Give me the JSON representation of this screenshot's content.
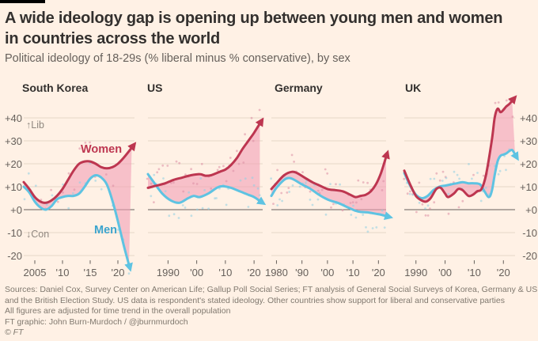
{
  "header": {
    "title_line1": "A wide ideology gap is opening up between young men and women",
    "title_line2": "in countries across the world",
    "subtitle": "Political ideology of 18-29s (% liberal minus % conservative), by sex"
  },
  "colors": {
    "background": "#fff1e5",
    "top_bar": "#000000",
    "title_text": "#33302e",
    "muted_text": "#66605b",
    "footer_text": "#80796f",
    "women_line": "#bd3650",
    "men_line": "#5ec3e2",
    "men_label_text": "#3ba4cd",
    "area_fill": "#f2a0b6",
    "women_dot": "#dd8ea4",
    "men_dot": "#8fcfe4",
    "gridline": "#e5d6c6",
    "zero_line": "#66605b"
  },
  "axis": {
    "tick_values": [
      40,
      30,
      20,
      10,
      0,
      -10,
      -20
    ],
    "tick_labels": [
      "+40",
      "+30",
      "+20",
      "+10",
      "+0",
      "-10",
      "-20"
    ],
    "lib_label": "↑Lib",
    "con_label": "↓Con"
  },
  "annotations": {
    "women_label": "Women",
    "men_label": "Men"
  },
  "chart_data": {
    "type": "line",
    "ylabel": "% liberal minus % conservative",
    "ylim": [
      -25,
      50
    ],
    "grid": true,
    "series_names": [
      "Women",
      "Men"
    ],
    "panels": [
      {
        "title": "South Korea",
        "x_ticks": [
          {
            "year": 2005,
            "label": "2005"
          },
          {
            "year": 2010,
            "label": "'10"
          },
          {
            "year": 2015,
            "label": "'15"
          },
          {
            "year": 2020,
            "label": "'20"
          }
        ],
        "women": [
          [
            2003,
            12
          ],
          [
            2004,
            9
          ],
          [
            2005,
            5.5
          ],
          [
            2006,
            3.5
          ],
          [
            2007,
            3
          ],
          [
            2008,
            4
          ],
          [
            2009,
            6
          ],
          [
            2010,
            9
          ],
          [
            2011,
            13
          ],
          [
            2012,
            17
          ],
          [
            2013,
            20
          ],
          [
            2014,
            21
          ],
          [
            2015,
            21
          ],
          [
            2016,
            20
          ],
          [
            2017,
            18.5
          ],
          [
            2018,
            18
          ],
          [
            2019,
            18.5
          ],
          [
            2020,
            20
          ],
          [
            2021,
            22.5
          ],
          [
            2022.5,
            27
          ]
        ],
        "men": [
          [
            2003,
            10
          ],
          [
            2004,
            7.5
          ],
          [
            2005,
            3.5
          ],
          [
            2006,
            1
          ],
          [
            2007,
            0
          ],
          [
            2008,
            1.5
          ],
          [
            2009,
            4.5
          ],
          [
            2010,
            5.5
          ],
          [
            2011,
            6
          ],
          [
            2012,
            6
          ],
          [
            2013,
            7
          ],
          [
            2014,
            10
          ],
          [
            2015,
            13.5
          ],
          [
            2016,
            15
          ],
          [
            2017,
            14
          ],
          [
            2018,
            11
          ],
          [
            2019,
            4
          ],
          [
            2020,
            -5
          ],
          [
            2021,
            -15
          ],
          [
            2022,
            -24
          ]
        ]
      },
      {
        "title": "US",
        "x_ticks": [
          {
            "year": 1990,
            "label": "1990"
          },
          {
            "year": 2000,
            "label": "'00"
          },
          {
            "year": 2010,
            "label": "'10"
          },
          {
            "year": 2020,
            "label": "'20"
          }
        ],
        "women": [
          [
            1983,
            9.5
          ],
          [
            1986,
            10.5
          ],
          [
            1989,
            11.5
          ],
          [
            1992,
            13
          ],
          [
            1995,
            14
          ],
          [
            1998,
            15
          ],
          [
            2001,
            15.5
          ],
          [
            2003,
            14.8
          ],
          [
            2005,
            15
          ],
          [
            2008,
            16.5
          ],
          [
            2010,
            17.5
          ],
          [
            2012,
            19.5
          ],
          [
            2014,
            22.5
          ],
          [
            2016,
            26.5
          ],
          [
            2018,
            30
          ],
          [
            2020,
            33.5
          ],
          [
            2022,
            37.5
          ]
        ],
        "men": [
          [
            1983,
            15.5
          ],
          [
            1985,
            12
          ],
          [
            1988,
            7
          ],
          [
            1991,
            4
          ],
          [
            1994,
            3
          ],
          [
            1997,
            5
          ],
          [
            1999,
            6
          ],
          [
            2001,
            5.5
          ],
          [
            2004,
            7
          ],
          [
            2007,
            9.5
          ],
          [
            2009,
            10.2
          ],
          [
            2012,
            9.5
          ],
          [
            2015,
            8
          ],
          [
            2018,
            6.5
          ],
          [
            2020,
            5.5
          ],
          [
            2022,
            3.8
          ]
        ]
      },
      {
        "title": "Germany",
        "x_ticks": [
          {
            "year": 1980,
            "label": "1980"
          },
          {
            "year": 1990,
            "label": "'90"
          },
          {
            "year": 2000,
            "label": "'00"
          },
          {
            "year": 2010,
            "label": "'10"
          },
          {
            "year": 2020,
            "label": "'20"
          }
        ],
        "women": [
          [
            1978,
            9
          ],
          [
            1980,
            11.5
          ],
          [
            1983,
            15
          ],
          [
            1986,
            16.5
          ],
          [
            1988,
            16
          ],
          [
            1991,
            14
          ],
          [
            1994,
            12
          ],
          [
            1997,
            10.5
          ],
          [
            2000,
            9
          ],
          [
            2003,
            8.5
          ],
          [
            2006,
            8
          ],
          [
            2009,
            6.5
          ],
          [
            2011,
            5.5
          ],
          [
            2013,
            6
          ],
          [
            2015,
            6.5
          ],
          [
            2017,
            8
          ],
          [
            2019,
            11
          ],
          [
            2021,
            16
          ],
          [
            2023,
            23
          ]
        ],
        "men": [
          [
            1978,
            6
          ],
          [
            1980,
            9.5
          ],
          [
            1983,
            13
          ],
          [
            1985,
            13.8
          ],
          [
            1987,
            13
          ],
          [
            1990,
            11
          ],
          [
            1993,
            9.3
          ],
          [
            1996,
            7
          ],
          [
            1999,
            5
          ],
          [
            2001,
            4
          ],
          [
            2004,
            3
          ],
          [
            2007,
            1.5
          ],
          [
            2009,
            0.5
          ],
          [
            2011,
            -0.5
          ],
          [
            2013,
            -1
          ],
          [
            2016,
            -1.2
          ],
          [
            2019,
            -1.8
          ],
          [
            2021,
            -2.2
          ],
          [
            2023,
            -2.8
          ]
        ]
      },
      {
        "title": "UK",
        "x_ticks": [
          {
            "year": 1990,
            "label": "1990"
          },
          {
            "year": 2000,
            "label": "'00"
          },
          {
            "year": 2010,
            "label": "'10"
          },
          {
            "year": 2020,
            "label": "'20"
          }
        ],
        "women": [
          [
            1986,
            17
          ],
          [
            1988,
            11
          ],
          [
            1990,
            6
          ],
          [
            1992,
            4
          ],
          [
            1993.5,
            3.5
          ],
          [
            1995,
            5
          ],
          [
            1997,
            9
          ],
          [
            1998.5,
            9.5
          ],
          [
            2000,
            7
          ],
          [
            2001,
            5.5
          ],
          [
            2003,
            7
          ],
          [
            2004.5,
            9
          ],
          [
            2006,
            8.5
          ],
          [
            2008,
            6
          ],
          [
            2009.5,
            6.5
          ],
          [
            2011,
            8
          ],
          [
            2012.5,
            9
          ],
          [
            2014,
            15
          ],
          [
            2016,
            30
          ],
          [
            2017,
            40
          ],
          [
            2018,
            44
          ],
          [
            2019,
            42.5
          ],
          [
            2020,
            43.5
          ],
          [
            2021,
            45
          ],
          [
            2022,
            46
          ],
          [
            2023,
            47.5
          ]
        ],
        "men": [
          [
            1986,
            16
          ],
          [
            1988,
            10.5
          ],
          [
            1990,
            6.5
          ],
          [
            1992,
            5
          ],
          [
            1994,
            6
          ],
          [
            1996,
            8.5
          ],
          [
            1998,
            10
          ],
          [
            2000,
            10.5
          ],
          [
            2002,
            11
          ],
          [
            2004,
            11.5
          ],
          [
            2006,
            12
          ],
          [
            2008,
            11.5
          ],
          [
            2010,
            11.5
          ],
          [
            2012,
            11
          ],
          [
            2013.5,
            8
          ],
          [
            2015,
            5.5
          ],
          [
            2016,
            8
          ],
          [
            2017,
            15
          ],
          [
            2018,
            21
          ],
          [
            2019,
            23.5
          ],
          [
            2020,
            24
          ],
          [
            2021,
            24.5
          ],
          [
            2022,
            25.5
          ],
          [
            2023,
            26
          ],
          [
            2024,
            24
          ]
        ]
      }
    ]
  },
  "footer": {
    "source_lines": [
      "Sources: Daniel Cox, Survey Center on American Life; Gallup Poll Social Series; FT analysis of General Social Surveys of Korea, Germany & US",
      "and the British Election Study. US data is respondent's stated ideology. Other countries show support for liberal and conservative parties"
    ],
    "note": "All figures are adjusted for time trend in the overall population",
    "credit": "FT graphic: John Burn-Murdoch / @jburnmurdoch",
    "copyright": "© FT"
  }
}
